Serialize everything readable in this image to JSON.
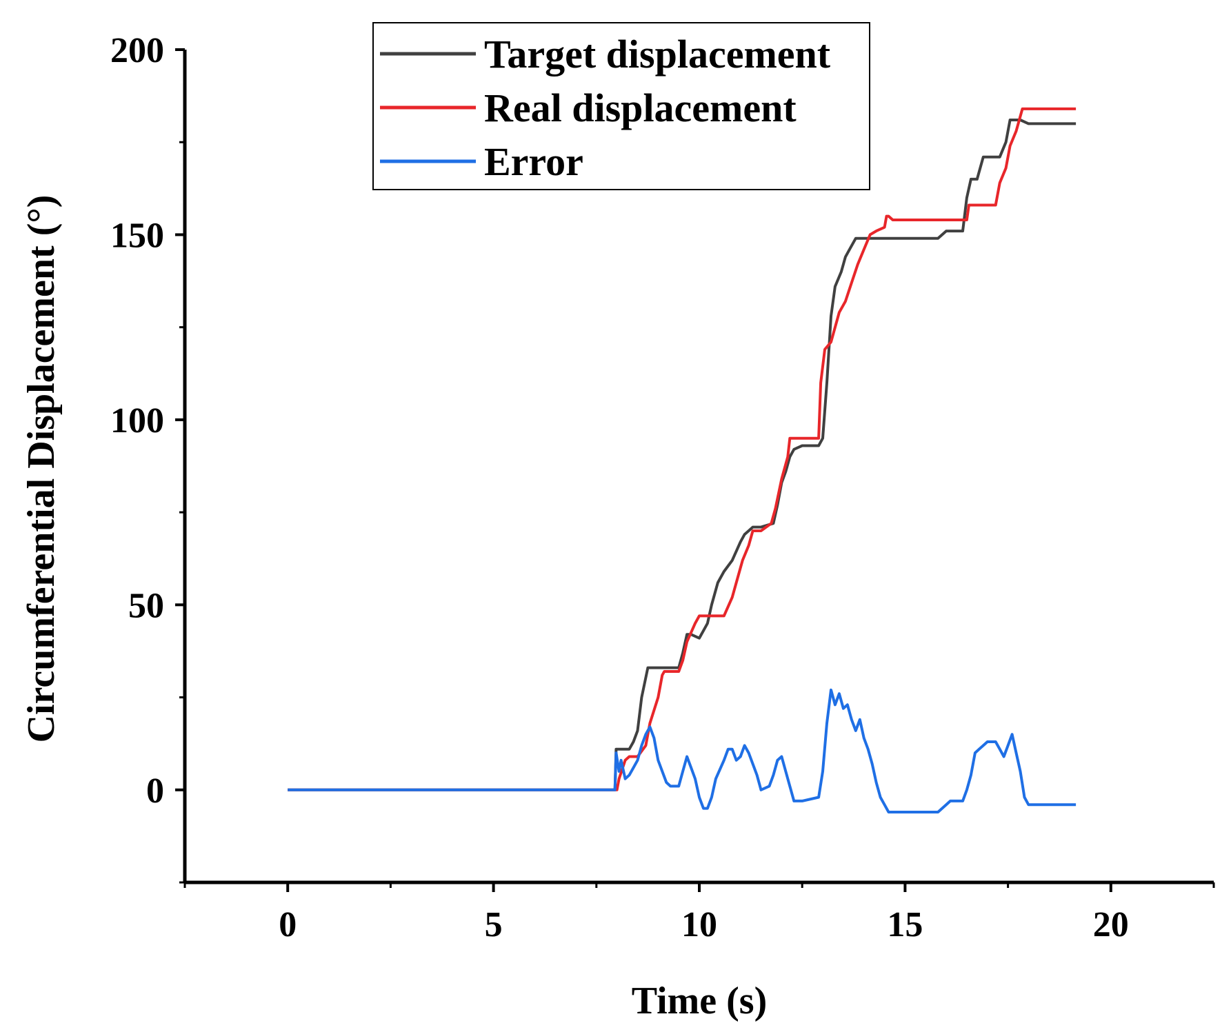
{
  "chart_data": {
    "type": "line",
    "title": "",
    "xlabel": "Time (s)",
    "ylabel": "Circumferential Displacement (°)",
    "xlim": [
      -2.5,
      22.5
    ],
    "ylim": [
      -25,
      200
    ],
    "xticks": [
      0,
      5,
      10,
      15,
      20
    ],
    "yticks": [
      0,
      50,
      100,
      150,
      200
    ],
    "grid": false,
    "legend_position": "top-center",
    "series": [
      {
        "name": "Target displacement",
        "color": "#404040",
        "x": [
          0,
          7.95,
          7.98,
          8.3,
          8.4,
          8.5,
          8.6,
          8.75,
          9.5,
          9.6,
          9.7,
          9.8,
          10.0,
          10.2,
          10.3,
          10.45,
          10.6,
          10.8,
          11.0,
          11.1,
          11.2,
          11.3,
          11.5,
          11.8,
          11.9,
          12.0,
          12.1,
          12.2,
          12.3,
          12.5,
          12.9,
          13.0,
          13.1,
          13.2,
          13.3,
          13.45,
          13.55,
          13.65,
          13.8,
          14.2,
          14.6,
          15.0,
          15.8,
          16.0,
          16.1,
          16.4,
          16.5,
          16.6,
          16.75,
          16.9,
          17.3,
          17.45,
          17.55,
          17.65,
          17.8,
          18.0,
          19.15
        ],
        "y": [
          0,
          0,
          11,
          11,
          13,
          16,
          25,
          33,
          33,
          37,
          42,
          42,
          41,
          45,
          50,
          56,
          59,
          62,
          67,
          69,
          70,
          71,
          71,
          72,
          77,
          83,
          86,
          90,
          92,
          93,
          93,
          95,
          110,
          128,
          136,
          140,
          144,
          146,
          149,
          149,
          149,
          149,
          149,
          151,
          151,
          151,
          160,
          165,
          165,
          171,
          171,
          175,
          181,
          181,
          181,
          180,
          180
        ]
      },
      {
        "name": "Real displacement",
        "color": "#e8262a",
        "x": [
          0,
          8.0,
          8.05,
          8.2,
          8.3,
          8.5,
          8.7,
          8.8,
          9.0,
          9.1,
          9.15,
          9.5,
          9.6,
          9.7,
          9.9,
          10.0,
          10.1,
          10.6,
          10.8,
          10.9,
          11.05,
          11.2,
          11.3,
          11.5,
          11.75,
          11.85,
          12.0,
          12.15,
          12.2,
          12.9,
          12.95,
          13.05,
          13.2,
          13.4,
          13.55,
          13.7,
          13.85,
          14.0,
          14.15,
          14.3,
          14.5,
          14.55,
          14.6,
          14.7,
          16.5,
          16.55,
          16.8,
          17.2,
          17.3,
          17.45,
          17.55,
          17.7,
          17.85,
          17.95,
          19.15
        ],
        "y": [
          0,
          0,
          3,
          8,
          9,
          9,
          12,
          18,
          25,
          31,
          32,
          32,
          35,
          40,
          45,
          47,
          47,
          47,
          52,
          56,
          62,
          66,
          70,
          70,
          72,
          76,
          84,
          90,
          95,
          95,
          110,
          119,
          121,
          129,
          132,
          137,
          142,
          146,
          150,
          151,
          152,
          155,
          155,
          154,
          154,
          158,
          158,
          158,
          164,
          168,
          174,
          178,
          184,
          184,
          184
        ]
      },
      {
        "name": "Error",
        "color": "#1f6fe5",
        "x": [
          0,
          7.95,
          7.98,
          8.05,
          8.1,
          8.2,
          8.3,
          8.4,
          8.5,
          8.6,
          8.7,
          8.8,
          8.9,
          9.0,
          9.1,
          9.2,
          9.3,
          9.5,
          9.6,
          9.7,
          9.8,
          9.9,
          10.0,
          10.1,
          10.2,
          10.3,
          10.4,
          10.6,
          10.7,
          10.8,
          10.9,
          11.0,
          11.1,
          11.2,
          11.3,
          11.4,
          11.5,
          11.7,
          11.8,
          11.9,
          12.0,
          12.1,
          12.2,
          12.3,
          12.5,
          12.9,
          13.0,
          13.1,
          13.2,
          13.3,
          13.4,
          13.5,
          13.6,
          13.7,
          13.8,
          13.9,
          14.0,
          14.1,
          14.2,
          14.3,
          14.4,
          14.5,
          14.6,
          14.7,
          15.0,
          15.8,
          16.0,
          16.1,
          16.4,
          16.5,
          16.6,
          16.7,
          16.8,
          16.9,
          17.0,
          17.1,
          17.2,
          17.3,
          17.4,
          17.5,
          17.6,
          17.7,
          17.8,
          17.9,
          18.0,
          19.15
        ],
        "y": [
          0,
          0,
          10,
          5,
          8,
          3,
          4,
          6,
          8,
          12,
          15,
          17,
          14,
          8,
          5,
          2,
          1,
          1,
          5,
          9,
          6,
          3,
          -2,
          -5,
          -5,
          -2,
          3,
          8,
          11,
          11,
          8,
          9,
          12,
          10,
          7,
          4,
          0,
          1,
          4,
          8,
          9,
          5,
          1,
          -3,
          -3,
          -2,
          5,
          18,
          27,
          23,
          26,
          22,
          23,
          19,
          16,
          19,
          14,
          11,
          7,
          2,
          -2,
          -4,
          -6,
          -6,
          -6,
          -6,
          -4,
          -3,
          -3,
          0,
          4,
          10,
          11,
          12,
          13,
          13,
          13,
          11,
          9,
          12,
          15,
          10,
          5,
          -2,
          -4,
          -4
        ]
      }
    ]
  }
}
